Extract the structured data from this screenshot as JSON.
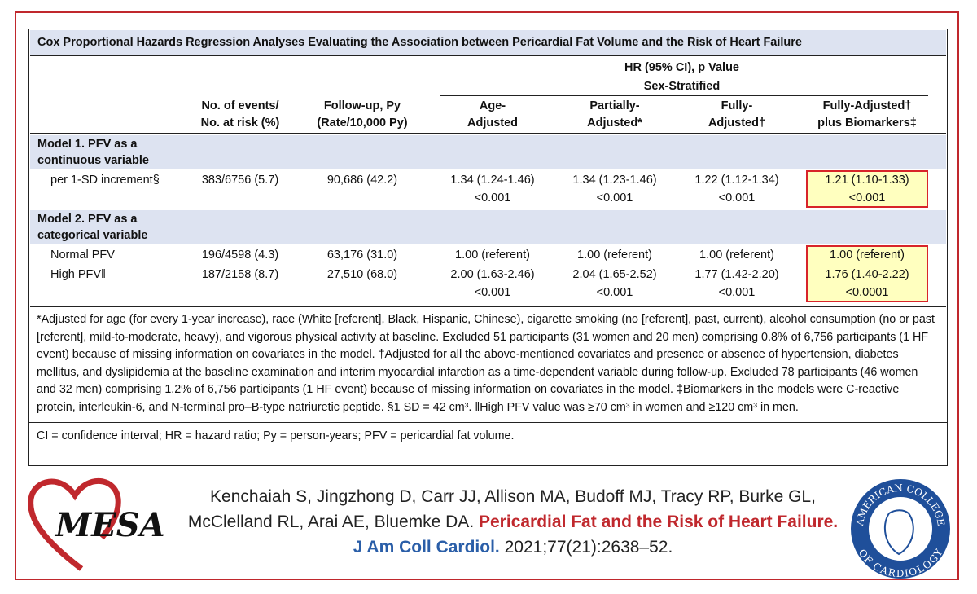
{
  "table": {
    "title": "Cox Proportional Hazards Regression Analyses Evaluating the Association between Pericardial Fat Volume and the Risk of Heart Failure",
    "header": {
      "group": "HR (95% CI), p Value",
      "subgroup": "Sex-Stratified",
      "columns": [
        [
          "No. of events/",
          "No. at risk (%)"
        ],
        [
          "Follow-up, Py",
          "(Rate/10,000 Py)"
        ],
        [
          "Age-",
          "Adjusted"
        ],
        [
          "Partially-",
          "Adjusted*"
        ],
        [
          "Fully-",
          "Adjusted†"
        ],
        [
          "Fully-Adjusted†",
          "plus Biomarkers‡"
        ]
      ]
    },
    "sections": [
      {
        "label": [
          "Model 1. PFV as a",
          "continuous variable"
        ],
        "rows": [
          {
            "label": "per 1-SD increment§",
            "cells": [
              [
                "383/6756 (5.7)"
              ],
              [
                "90,686 (42.2)"
              ],
              [
                "1.34 (1.24-1.46)",
                "<0.001"
              ],
              [
                "1.34 (1.23-1.46)",
                "<0.001"
              ],
              [
                "1.22 (1.12-1.34)",
                "<0.001"
              ],
              [
                "1.21 (1.10-1.33)",
                "<0.001"
              ]
            ]
          }
        ]
      },
      {
        "label": [
          "Model 2. PFV as a",
          "categorical variable"
        ],
        "rows": [
          {
            "label": "Normal PFV",
            "cells": [
              [
                "196/4598 (4.3)"
              ],
              [
                "63,176 (31.0)"
              ],
              [
                "1.00 (referent)"
              ],
              [
                "1.00 (referent)"
              ],
              [
                "1.00 (referent)"
              ],
              [
                "1.00 (referent)"
              ]
            ]
          },
          {
            "label": "High PFV‖",
            "cells": [
              [
                "187/2158 (8.7)"
              ],
              [
                "27,510 (68.0)"
              ],
              [
                "2.00 (1.63-2.46)",
                "<0.001"
              ],
              [
                "2.04 (1.65-2.52)",
                "<0.001"
              ],
              [
                "1.77 (1.42-2.20)",
                "<0.001"
              ],
              [
                "1.76 (1.40-2.22)",
                "<0.0001"
              ]
            ]
          }
        ]
      }
    ],
    "footnotes": [
      "*Adjusted for age (for every 1-year increase), race (White [referent], Black, Hispanic, Chinese), cigarette smoking (no [referent], past, current), alcohol consumption (no or past [referent], mild-to-moderate, heavy), and vigorous physical activity at baseline. Excluded 51 participants (31 women and 20 men) comprising 0.8% of 6,756 participants (1 HF event) because of missing information on covariates in the model. †Adjusted for all the above-mentioned covariates and presence or absence of hypertension, diabetes mellitus, and dyslipidemia at the baseline examination and interim myocardial infarction as a time-dependent variable during follow-up. Excluded 78 participants (46 women and 32 men) comprising 1.2% of 6,756 participants (1 HF event) because of missing information on covariates in the model. ‡Biomarkers in the models were C-reactive protein, interleukin-6, and N-terminal pro–B-type natriuretic peptide. §1 SD = 42 cm³. ‖High PFV value was ≥70 cm³ in women and ≥120 cm³ in men.",
      "CI = confidence interval; HR = hazard ratio; Py = person-years; PFV = pericardial fat volume."
    ]
  },
  "citation": {
    "authors": [
      "Kenchaiah S, Jingzhong D, Carr JJ, Allison MA,  Budoff MJ, Tracy RP, Burke GL,",
      "McClelland RL, Arai AE, Bluemke DA."
    ],
    "title": "Pericardial Fat and the Risk of Heart Failure.",
    "journal": "J Am Coll Cardiol.",
    "details": "2021;77(21):2638–52."
  },
  "logos": {
    "left": "MESA",
    "right": [
      "AMERICAN COLLEGE",
      "OF CARDIOLOGY"
    ]
  }
}
